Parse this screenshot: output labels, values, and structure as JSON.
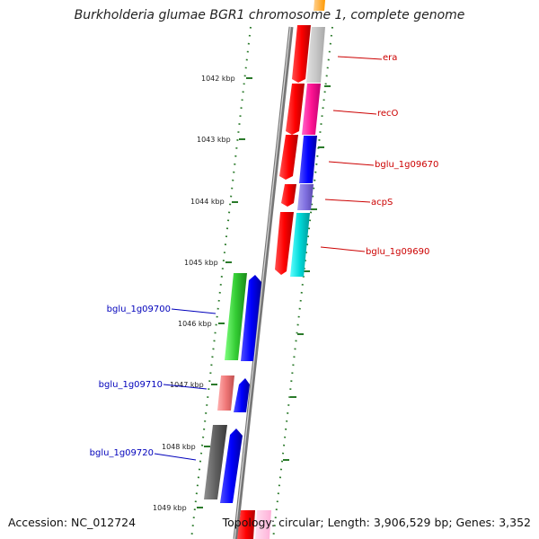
{
  "title": "Burkholderia glumae BGR1 chromosome 1, complete genome",
  "accession": "Accession: NC_012724",
  "stats": "Topology: circular; Length: 3,906,529 bp; Genes: 3,352",
  "ticks": [
    "1042 kbp",
    "1043 kbp",
    "1044 kbp",
    "1045 kbp",
    "1046 kbp",
    "1047 kbp",
    "1048 kbp",
    "1049 kbp"
  ],
  "genes_right": [
    "era",
    "recO",
    "bglu_1g09670",
    "acpS",
    "bglu_1g09690"
  ],
  "genes_left": [
    "bglu_1g09700",
    "bglu_1g09710",
    "bglu_1g09720"
  ],
  "colors": {
    "backbone": "#888888",
    "tick": "#2a7a2a",
    "label_right": "#cc0000",
    "label_left": "#0000bb"
  }
}
